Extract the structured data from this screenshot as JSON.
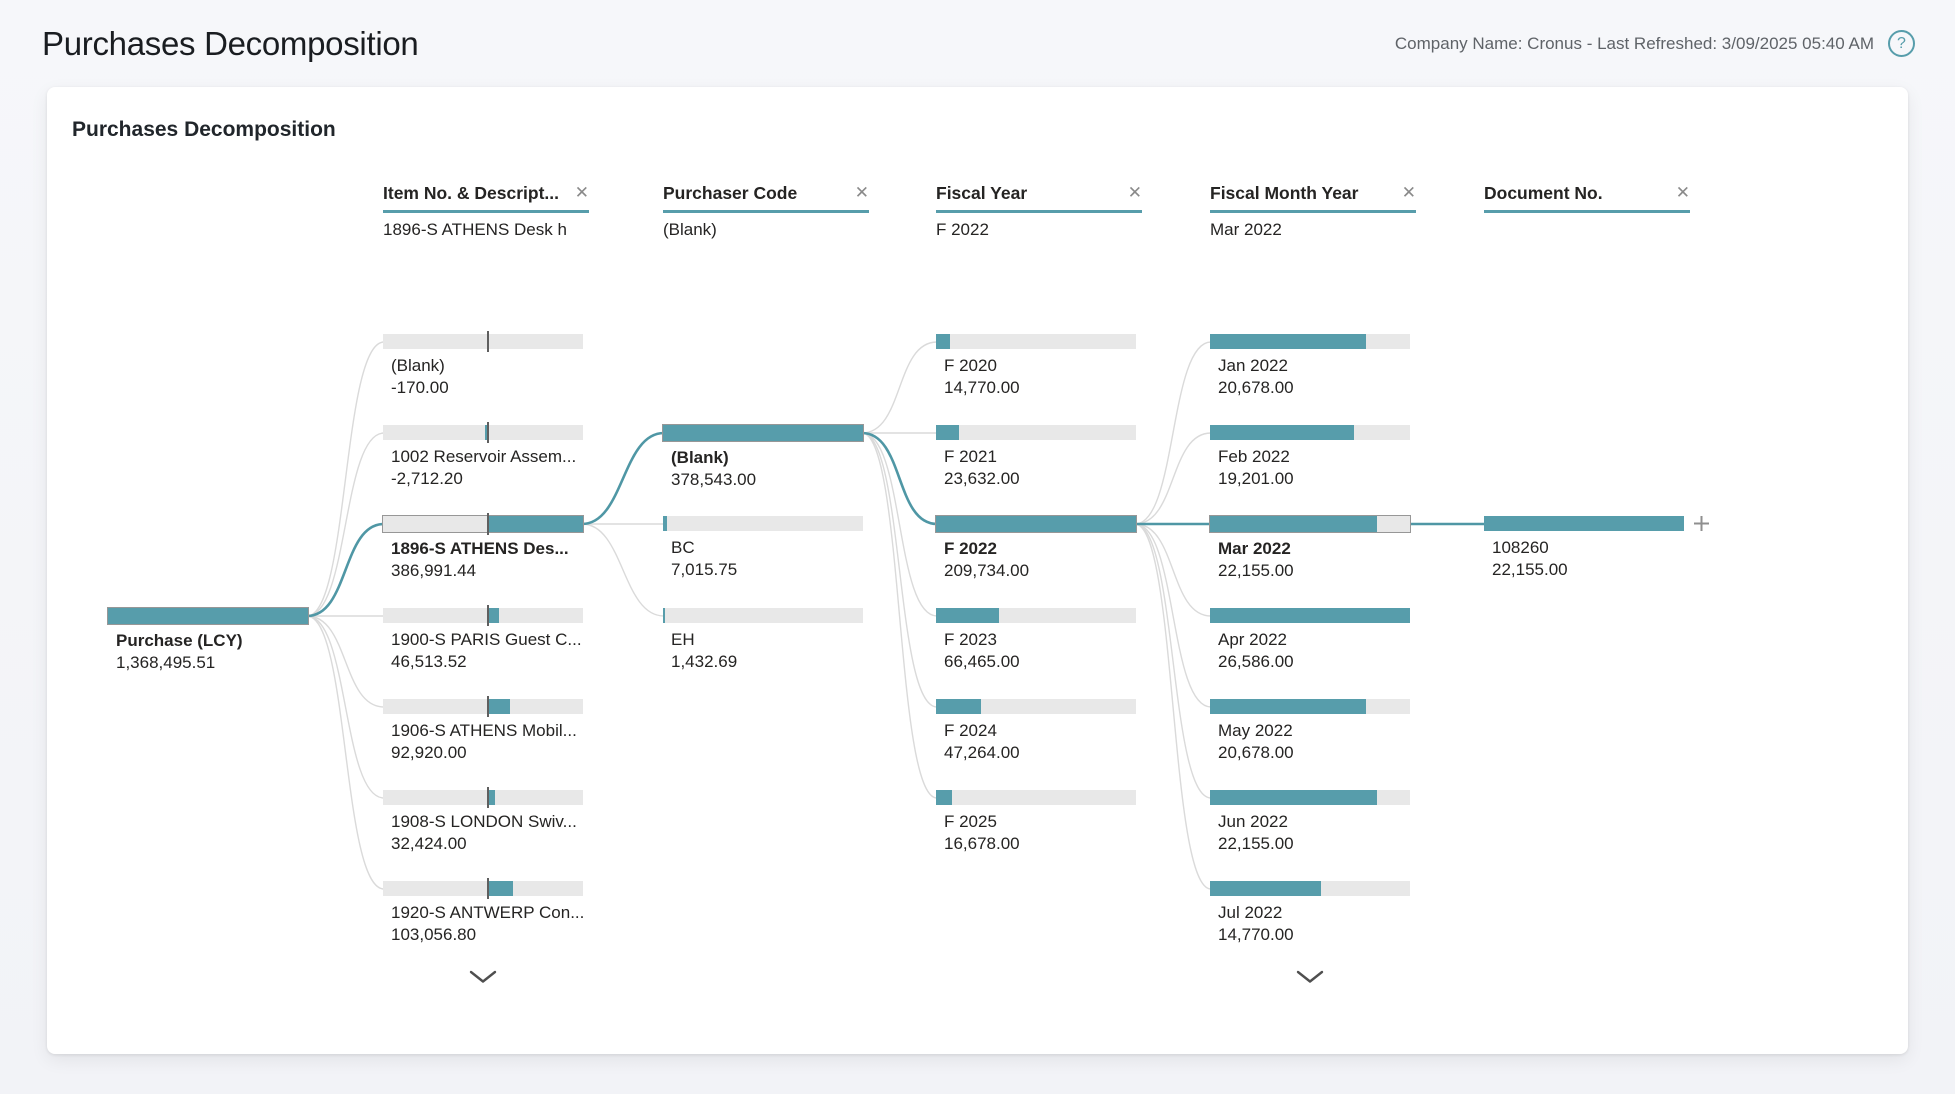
{
  "page": {
    "title": "Purchases Decomposition",
    "meta": "Company Name: Cronus - Last Refreshed: 3/09/2025 05:40 AM"
  },
  "card": {
    "title": "Purchases Decomposition"
  },
  "icons": {
    "close": "✕",
    "help": "?",
    "plus": "+",
    "chevron_down": "v"
  },
  "colors": {
    "accent": "#579dab",
    "wire_selected": "#4f97a5",
    "wire": "#dadada",
    "track": "#e8e8e8",
    "tick": "#5f5f5f"
  },
  "tree": {
    "root": {
      "label": "Purchase (LCY)",
      "value": "1,368,495.51",
      "row": 3,
      "selected": true,
      "fill_start": 0,
      "fill_end": 1
    },
    "columns": [
      {
        "header": "Item No. & Descript...",
        "subtitle": "1896-S ATHENS Desk h",
        "expander": true,
        "nodes": [
          {
            "label": "(Blank)",
            "value": "-170.00",
            "row": 0,
            "fill_start": 0.518,
            "fill_end": 0.52,
            "tick": 0.52
          },
          {
            "label": "1002 Reservoir Assem...",
            "value": "-2,712.20",
            "row": 1,
            "fill_start": 0.512,
            "fill_end": 0.52,
            "tick": 0.52
          },
          {
            "label": "1896-S ATHENS Des...",
            "value": "386,991.44",
            "row": 2,
            "selected": true,
            "fill_start": 0.52,
            "fill_end": 1,
            "tick": 0.52
          },
          {
            "label": "1900-S PARIS Guest C...",
            "value": "46,513.52",
            "row": 3,
            "fill_start": 0.52,
            "fill_end": 0.578,
            "tick": 0.52
          },
          {
            "label": "1906-S ATHENS Mobil...",
            "value": "92,920.00",
            "row": 4,
            "fill_start": 0.52,
            "fill_end": 0.635,
            "tick": 0.52
          },
          {
            "label": "1908-S LONDON Swiv...",
            "value": "32,424.00",
            "row": 5,
            "fill_start": 0.52,
            "fill_end": 0.56,
            "tick": 0.52
          },
          {
            "label": "1920-S ANTWERP Con...",
            "value": "103,056.80",
            "row": 6,
            "fill_start": 0.52,
            "fill_end": 0.648,
            "tick": 0.52
          }
        ]
      },
      {
        "header": "Purchaser Code",
        "subtitle": "(Blank)",
        "expander": false,
        "nodes": [
          {
            "label": "(Blank)",
            "value": "378,543.00",
            "row": 1,
            "selected": true,
            "fill_start": 0,
            "fill_end": 1
          },
          {
            "label": "BC",
            "value": "7,015.75",
            "row": 2,
            "fill_start": 0,
            "fill_end": 0.02
          },
          {
            "label": "EH",
            "value": "1,432.69",
            "row": 3,
            "fill_start": 0,
            "fill_end": 0.01
          }
        ]
      },
      {
        "header": "Fiscal Year",
        "subtitle": "F 2022",
        "expander": false,
        "nodes": [
          {
            "label": "F 2020",
            "value": "14,770.00",
            "row": 0,
            "fill_start": 0,
            "fill_end": 0.07
          },
          {
            "label": "F 2021",
            "value": "23,632.00",
            "row": 1,
            "fill_start": 0,
            "fill_end": 0.113
          },
          {
            "label": "F 2022",
            "value": "209,734.00",
            "row": 2,
            "selected": true,
            "fill_start": 0,
            "fill_end": 1
          },
          {
            "label": "F 2023",
            "value": "66,465.00",
            "row": 3,
            "fill_start": 0,
            "fill_end": 0.317
          },
          {
            "label": "F 2024",
            "value": "47,264.00",
            "row": 4,
            "fill_start": 0,
            "fill_end": 0.225
          },
          {
            "label": "F 2025",
            "value": "16,678.00",
            "row": 5,
            "fill_start": 0,
            "fill_end": 0.08
          }
        ]
      },
      {
        "header": "Fiscal Month Year",
        "subtitle": "Mar 2022",
        "expander": true,
        "nodes": [
          {
            "label": "Jan 2022",
            "value": "20,678.00",
            "row": 0,
            "fill_start": 0,
            "fill_end": 0.778
          },
          {
            "label": "Feb 2022",
            "value": "19,201.00",
            "row": 1,
            "fill_start": 0,
            "fill_end": 0.722
          },
          {
            "label": "Mar 2022",
            "value": "22,155.00",
            "row": 2,
            "selected": true,
            "fill_start": 0,
            "fill_end": 0.833
          },
          {
            "label": "Apr 2022",
            "value": "26,586.00",
            "row": 3,
            "fill_start": 0,
            "fill_end": 1
          },
          {
            "label": "May 2022",
            "value": "20,678.00",
            "row": 4,
            "fill_start": 0,
            "fill_end": 0.778
          },
          {
            "label": "Jun 2022",
            "value": "22,155.00",
            "row": 5,
            "fill_start": 0,
            "fill_end": 0.833
          },
          {
            "label": "Jul 2022",
            "value": "14,770.00",
            "row": 6,
            "fill_start": 0,
            "fill_end": 0.556
          }
        ]
      },
      {
        "header": "Document No.",
        "subtitle": "",
        "expander": false,
        "nodes": [
          {
            "label": "108260",
            "value": "22,155.00",
            "row": 2,
            "path": true,
            "plus": true,
            "fill_start": 0,
            "fill_end": 1
          }
        ]
      }
    ]
  }
}
